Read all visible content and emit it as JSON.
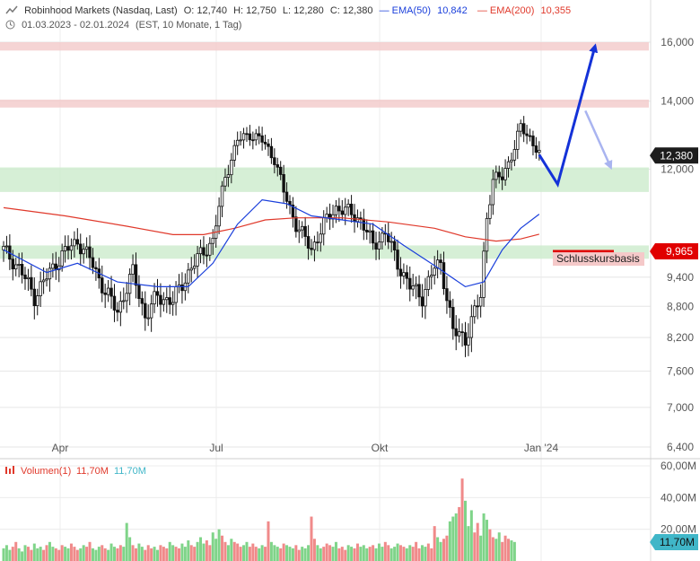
{
  "header": {
    "instrument": "Robinhood Markets (Nasdaq, Last)",
    "open": "O: 12,740",
    "high": "H: 12,750",
    "low": "L: 12,280",
    "close": "C: 12,380",
    "ema50_label": "EMA(50)",
    "ema50_value": "10,842",
    "ema200_label": "EMA(200)",
    "ema200_value": "10,355",
    "range": "01.03.2023 - 02.01.2024",
    "range_info": "(EST, 10 Monate, 1 Tag)"
  },
  "colors": {
    "ema50": "#1a3fdb",
    "ema200": "#e0392b",
    "resistance_zone": "#f3cccc",
    "support_zone": "#cfeccf",
    "candle": "#111111",
    "arrow_main": "#1432d8",
    "arrow_light": "#a9b4f0",
    "volume_up": "#7fd489",
    "volume_down": "#f08a8a",
    "price_badge": "#1c1c1c",
    "level_badge": "#e00000",
    "volume_badge": "#40b6c8"
  },
  "price_badges": {
    "last": "12,380",
    "level": "9,965"
  },
  "annotations": {
    "level_label": "Schlusskursbasis"
  },
  "volume_panel": {
    "label": "Volumen(1)",
    "value_red": "11,70M",
    "value_blue": "11,70M",
    "badge": "11,70M",
    "axis_ticks": [
      "60,00M",
      "40,00M",
      "20,00M"
    ]
  },
  "chart_data": {
    "type": "candlestick",
    "scale": "log",
    "y_ticks": [
      "16,000",
      "14,000",
      "12,000",
      "9,400",
      "8,800",
      "8,200",
      "7,600",
      "7,000",
      "6,400"
    ],
    "y_tick_values": [
      16,
      14,
      12,
      9.4,
      8.8,
      8.2,
      7.6,
      7.0,
      6.4
    ],
    "x_ticks": [
      "Apr",
      "Jul",
      "Okt",
      "Jan '24"
    ],
    "x_range": [
      "01.03.2023",
      "02.01.2024"
    ],
    "zones": [
      {
        "kind": "resistance",
        "from": 15.7,
        "to": 16.0
      },
      {
        "kind": "resistance",
        "from": 13.8,
        "to": 14.05
      },
      {
        "kind": "support",
        "from": 11.4,
        "to": 12.05
      },
      {
        "kind": "support",
        "from": 9.8,
        "to": 10.1
      }
    ],
    "close_path": [
      [
        0,
        10.0
      ],
      [
        5,
        9.6
      ],
      [
        10,
        9.0
      ],
      [
        14,
        9.4
      ],
      [
        19,
        9.9
      ],
      [
        24,
        10.2
      ],
      [
        28,
        9.8
      ],
      [
        33,
        9.1
      ],
      [
        37,
        8.7
      ],
      [
        42,
        9.5
      ],
      [
        46,
        8.6
      ],
      [
        50,
        9.0
      ],
      [
        55,
        8.9
      ],
      [
        60,
        9.5
      ],
      [
        64,
        9.9
      ],
      [
        68,
        10.2
      ],
      [
        72,
        11.8
      ],
      [
        76,
        12.8
      ],
      [
        80,
        13.0
      ],
      [
        84,
        12.8
      ],
      [
        88,
        12.3
      ],
      [
        91,
        11.4
      ],
      [
        95,
        10.6
      ],
      [
        100,
        10.0
      ],
      [
        104,
        10.6
      ],
      [
        108,
        11.0
      ],
      [
        112,
        10.9
      ],
      [
        116,
        10.7
      ],
      [
        120,
        10.1
      ],
      [
        124,
        10.4
      ],
      [
        128,
        9.7
      ],
      [
        132,
        9.2
      ],
      [
        136,
        9.0
      ],
      [
        140,
        9.6
      ],
      [
        142,
        9.7
      ],
      [
        146,
        8.3
      ],
      [
        150,
        8.2
      ],
      [
        152,
        8.5
      ],
      [
        155,
        9.0
      ],
      [
        157,
        10.8
      ],
      [
        159,
        11.7
      ],
      [
        162,
        11.8
      ],
      [
        166,
        12.6
      ],
      [
        168,
        13.2
      ],
      [
        171,
        12.9
      ],
      [
        174,
        12.4
      ]
    ],
    "ema50": [
      [
        0,
        10.0
      ],
      [
        14,
        9.5
      ],
      [
        24,
        9.7
      ],
      [
        37,
        9.3
      ],
      [
        50,
        9.2
      ],
      [
        60,
        9.2
      ],
      [
        68,
        9.7
      ],
      [
        76,
        10.6
      ],
      [
        84,
        11.2
      ],
      [
        92,
        11.1
      ],
      [
        100,
        10.8
      ],
      [
        110,
        10.7
      ],
      [
        120,
        10.6
      ],
      [
        130,
        10.1
      ],
      [
        140,
        9.65
      ],
      [
        150,
        9.2
      ],
      [
        156,
        9.3
      ],
      [
        162,
        10.0
      ],
      [
        168,
        10.5
      ],
      [
        174,
        10.84
      ]
    ],
    "ema200": [
      [
        0,
        11.0
      ],
      [
        20,
        10.8
      ],
      [
        40,
        10.55
      ],
      [
        55,
        10.35
      ],
      [
        65,
        10.35
      ],
      [
        75,
        10.5
      ],
      [
        85,
        10.7
      ],
      [
        95,
        10.75
      ],
      [
        110,
        10.75
      ],
      [
        125,
        10.65
      ],
      [
        140,
        10.5
      ],
      [
        150,
        10.3
      ],
      [
        160,
        10.2
      ],
      [
        168,
        10.25
      ],
      [
        174,
        10.36
      ]
    ],
    "projection": {
      "main": [
        [
          174,
          12.4
        ],
        [
          180,
          11.6
        ],
        [
          192,
          15.8
        ]
      ],
      "alternative": [
        [
          189,
          13.7
        ],
        [
          197,
          12.1
        ]
      ]
    },
    "volume": {
      "unit": "M",
      "ylim": [
        0,
        60
      ],
      "values": [
        8,
        10,
        7,
        9,
        12,
        8,
        6,
        10,
        9,
        7,
        11,
        8,
        9,
        7,
        10,
        12,
        9,
        8,
        7,
        10,
        9,
        8,
        11,
        9,
        7,
        8,
        10,
        9,
        12,
        8,
        7,
        9,
        10,
        8,
        7,
        11,
        9,
        8,
        10,
        9,
        24,
        15,
        10,
        8,
        11,
        9,
        7,
        10,
        8,
        9,
        7,
        10,
        9,
        8,
        12,
        10,
        9,
        8,
        11,
        9,
        13,
        10,
        9,
        12,
        15,
        11,
        13,
        10,
        18,
        14,
        20,
        16,
        12,
        10,
        14,
        12,
        11,
        9,
        10,
        12,
        9,
        11,
        9,
        8,
        10,
        9,
        25,
        12,
        10,
        9,
        8,
        11,
        10,
        9,
        8,
        10,
        7,
        9,
        8,
        10,
        28,
        14,
        10,
        8,
        9,
        11,
        10,
        9,
        12,
        8,
        9,
        7,
        10,
        9,
        8,
        11,
        9,
        10,
        8,
        9,
        10,
        8,
        11,
        9,
        12,
        10,
        8,
        9,
        11,
        10,
        9,
        8,
        10,
        9,
        12,
        8,
        10,
        9,
        11,
        8,
        22,
        15,
        12,
        14,
        16,
        25,
        28,
        30,
        34,
        52,
        38,
        22,
        32,
        18,
        24,
        16,
        30,
        26,
        20,
        15,
        14,
        18,
        12,
        16,
        14,
        13,
        12
      ]
    }
  }
}
